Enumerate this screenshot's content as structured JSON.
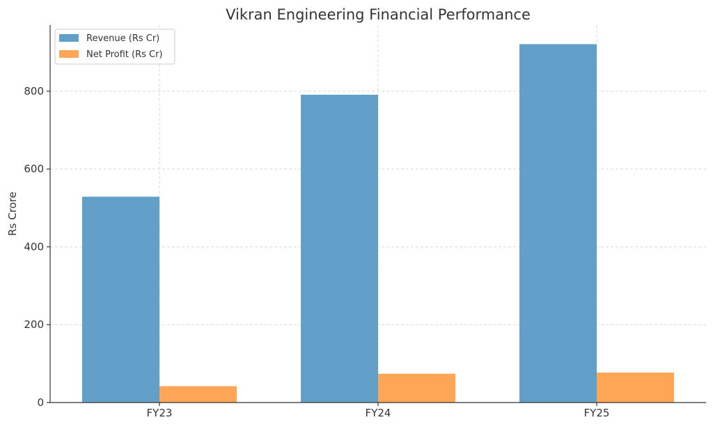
{
  "chart_data": {
    "type": "bar",
    "title": "Vikran Engineering Financial Performance",
    "xlabel": "",
    "ylabel": "Rs Crore",
    "categories": [
      "FY23",
      "FY24",
      "FY25"
    ],
    "series": [
      {
        "name": "Revenue (Rs Cr)",
        "values": [
          529,
          791,
          921
        ],
        "color": "#62a0ca"
      },
      {
        "name": "Net Profit (Rs Cr)",
        "values": [
          42,
          74,
          77
        ],
        "color": "#ffa556"
      }
    ],
    "ylim": [
      0,
      970
    ],
    "yticks": [
      0,
      200,
      400,
      600,
      800
    ],
    "grid": true,
    "legend_position": "top-left"
  }
}
